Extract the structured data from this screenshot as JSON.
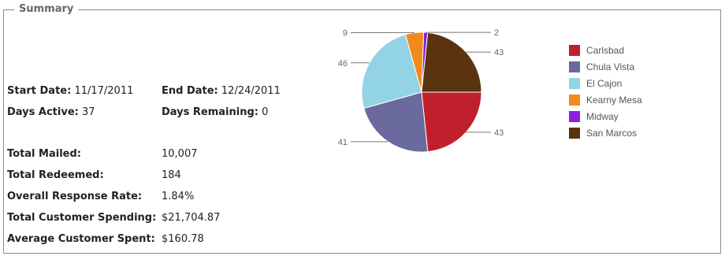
{
  "panel": {
    "title": "Summary"
  },
  "dates": {
    "start_label": "Start Date:",
    "start_value": "11/17/2011",
    "end_label": "End Date:",
    "end_value": "12/24/2011",
    "active_label": "Days Active:",
    "active_value": "37",
    "remaining_label": "Days Remaining:",
    "remaining_value": "0"
  },
  "stats": [
    {
      "label": "Total Mailed:",
      "value": "10,007"
    },
    {
      "label": "Total Redeemed:",
      "value": "184"
    },
    {
      "label": "Overall Response Rate:",
      "value": "1.84%"
    },
    {
      "label": "Total Customer Spending:",
      "value": "$21,704.87"
    },
    {
      "label": "Average Customer Spent:",
      "value": "$160.78"
    }
  ],
  "chart_data": {
    "type": "pie",
    "categories": [
      "Carlsbad",
      "Chula Vista",
      "El Cajon",
      "Kearny Mesa",
      "Midway",
      "San Marcos"
    ],
    "values": [
      43,
      41,
      46,
      9,
      2,
      43
    ],
    "colors": [
      "#c0202d",
      "#6a6a9e",
      "#92d3e6",
      "#f08a1c",
      "#8b1fe0",
      "#5a3410"
    ],
    "legend": "right"
  }
}
